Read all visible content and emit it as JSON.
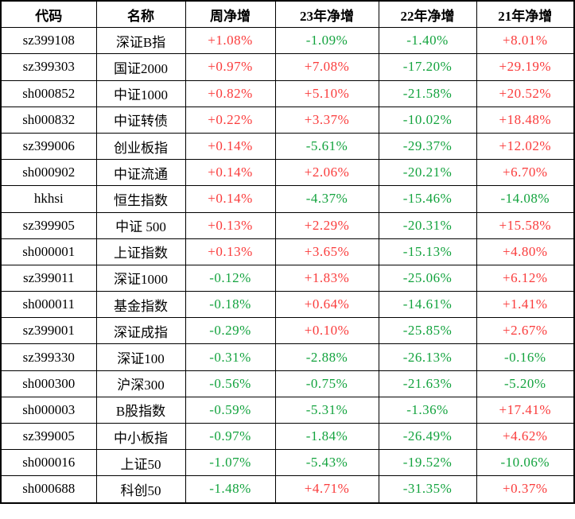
{
  "colors": {
    "positive": "#fa3b3b",
    "negative": "#13a33e",
    "text": "#000000",
    "border": "#000000",
    "background": "#ffffff"
  },
  "chart_data": {
    "type": "table",
    "columns": [
      "代码",
      "名称",
      "周净增",
      "23年净增",
      "22年净增",
      "21年净增"
    ],
    "rows": [
      [
        "sz399108",
        "深证B指",
        "+1.08%",
        "-1.09%",
        "-1.40%",
        "+8.01%"
      ],
      [
        "sz399303",
        "国证2000",
        "+0.97%",
        "+7.08%",
        "-17.20%",
        "+29.19%"
      ],
      [
        "sh000852",
        "中证1000",
        "+0.82%",
        "+5.10%",
        "-21.58%",
        "+20.52%"
      ],
      [
        "sh000832",
        "中证转债",
        "+0.22%",
        "+3.37%",
        "-10.02%",
        "+18.48%"
      ],
      [
        "sz399006",
        "创业板指",
        "+0.14%",
        "-5.61%",
        "-29.37%",
        "+12.02%"
      ],
      [
        "sh000902",
        "中证流通",
        "+0.14%",
        "+2.06%",
        "-20.21%",
        "+6.70%"
      ],
      [
        "hkhsi",
        "恒生指数",
        "+0.14%",
        "-4.37%",
        "-15.46%",
        "-14.08%"
      ],
      [
        "sz399905",
        "中证 500",
        "+0.13%",
        "+2.29%",
        "-20.31%",
        "+15.58%"
      ],
      [
        "sh000001",
        "上证指数",
        "+0.13%",
        "+3.65%",
        "-15.13%",
        "+4.80%"
      ],
      [
        "sz399011",
        "深证1000",
        "-0.12%",
        "+1.83%",
        "-25.06%",
        "+6.12%"
      ],
      [
        "sh000011",
        "基金指数",
        "-0.18%",
        "+0.64%",
        "-14.61%",
        "+1.41%"
      ],
      [
        "sz399001",
        "深证成指",
        "-0.29%",
        "+0.10%",
        "-25.85%",
        "+2.67%"
      ],
      [
        "sz399330",
        "深证100",
        "-0.31%",
        "-2.88%",
        "-26.13%",
        "-0.16%"
      ],
      [
        "sh000300",
        "沪深300",
        "-0.56%",
        "-0.75%",
        "-21.63%",
        "-5.20%"
      ],
      [
        "sh000003",
        "B股指数",
        "-0.59%",
        "-5.31%",
        "-1.36%",
        "+17.41%"
      ],
      [
        "sz399005",
        "中小板指",
        "-0.97%",
        "-1.84%",
        "-26.49%",
        "+4.62%"
      ],
      [
        "sh000016",
        "上证50",
        "-1.07%",
        "-5.43%",
        "-19.52%",
        "-10.06%"
      ],
      [
        "sh000688",
        "科创50",
        "-1.48%",
        "+4.71%",
        "-31.35%",
        "+0.37%"
      ]
    ]
  }
}
